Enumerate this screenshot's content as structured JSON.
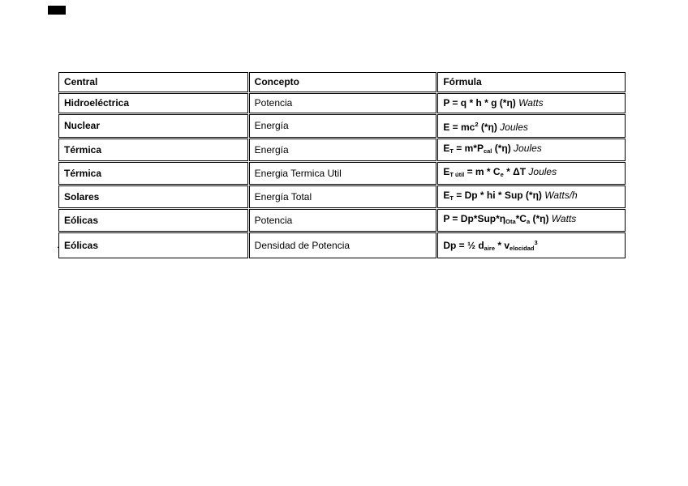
{
  "page": {
    "background": "#ffffff",
    "trailing_text": "."
  },
  "colors": {
    "border": "#000000",
    "text": "#000000",
    "redaction": "#000000"
  },
  "table": {
    "columns": [
      {
        "key": "central",
        "label": "Central"
      },
      {
        "key": "concepto",
        "label": "Concepto"
      },
      {
        "key": "formula",
        "label": "Fórmula"
      }
    ],
    "rows": [
      {
        "central": "Hidroeléctrica",
        "concepto": "Potencia",
        "formula": [
          {
            "t": "P = q * h * g (*η)",
            "s": "b"
          },
          {
            "t": " Watts",
            "s": "i"
          }
        ]
      },
      {
        "central": "Nuclear",
        "concepto": "Energía",
        "formula": [
          {
            "t": "E = mc",
            "s": "b"
          },
          {
            "t": "2",
            "s": "bsup"
          },
          {
            "t": " (*η)",
            "s": "b"
          },
          {
            "t": " Joules",
            "s": "i"
          }
        ]
      },
      {
        "central": "Térmica",
        "concepto": "Energía",
        "formula": [
          {
            "t": "E",
            "s": "b"
          },
          {
            "t": "T",
            "s": "bsub"
          },
          {
            "t": " = m*P",
            "s": "b"
          },
          {
            "t": "cal",
            "s": "bsub"
          },
          {
            "t": " (*η)",
            "s": "b"
          },
          {
            "t": " Joules",
            "s": "i"
          }
        ]
      },
      {
        "central": "Térmica",
        "concepto": "Energia Termica Util",
        "formula": [
          {
            "t": "E",
            "s": "b"
          },
          {
            "t": "T útil",
            "s": "bsub"
          },
          {
            "t": " = m * C",
            "s": "b"
          },
          {
            "t": "e",
            "s": "bsub"
          },
          {
            "t": " * ΔT",
            "s": "b"
          },
          {
            "t": " Joules",
            "s": "i"
          }
        ]
      },
      {
        "central": "Solares",
        "concepto": "Energía Total",
        "formula": [
          {
            "t": "E",
            "s": "b"
          },
          {
            "t": "T",
            "s": "bsub"
          },
          {
            "t": " = Dp * hi * Sup (*η)",
            "s": "b"
          },
          {
            "t": " Watts/h",
            "s": "i"
          }
        ]
      },
      {
        "central": "Eólicas",
        "concepto": "Potencia",
        "formula": [
          {
            "t": "P = Dp*Sup*η",
            "s": "b"
          },
          {
            "t": "Ota",
            "s": "bsub"
          },
          {
            "t": "*C",
            "s": "b"
          },
          {
            "t": "a",
            "s": "bsub"
          },
          {
            "t": " (*η)",
            "s": "b"
          },
          {
            "t": " Watts",
            "s": "i"
          }
        ]
      },
      {
        "central": "Eólicas",
        "concepto": "Densidad de Potencia",
        "formula": [
          {
            "t": "Dp = ½ d",
            "s": "b"
          },
          {
            "t": "aire",
            "s": "bsub"
          },
          {
            "t": " * v",
            "s": "b"
          },
          {
            "t": "elocidad",
            "s": "bsub"
          },
          {
            "t": "3",
            "s": "bsup"
          }
        ]
      }
    ]
  }
}
